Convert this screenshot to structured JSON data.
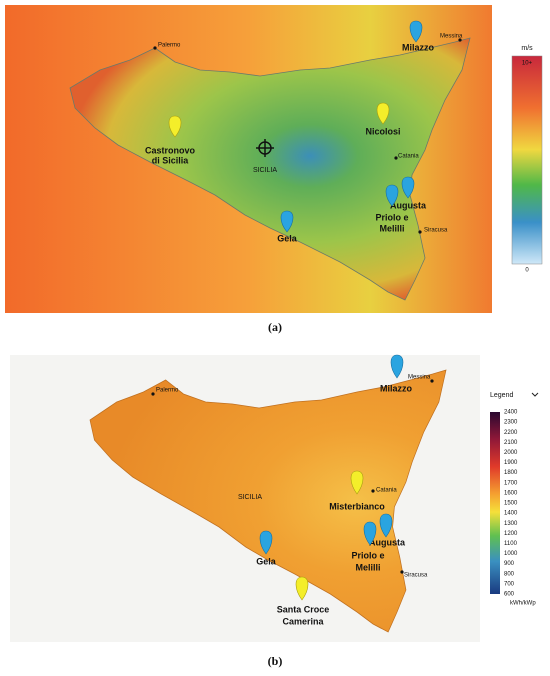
{
  "panel_a": {
    "unit": "m/s",
    "scale_max": "10+",
    "scale_min": 0,
    "places": {
      "palermo": [
        "Palermo"
      ],
      "messina": [
        "Messina"
      ],
      "milazzo": [
        "Milazzo"
      ],
      "castronovo": [
        "Castronovo",
        "di Sicilia"
      ],
      "sicilia": [
        "SICILIA"
      ],
      "nicolosi": [
        "Nicolosi"
      ],
      "catania": [
        "Catania"
      ],
      "augusta": [
        "Augusta"
      ],
      "priolo": [
        "Priolo e",
        "Melilli"
      ],
      "siracusa": [
        "Siracusa"
      ],
      "gela": [
        "Gela"
      ]
    },
    "caption": "(a)"
  },
  "panel_b": {
    "legend_title": "Legend",
    "unit": "kWh/kWp",
    "legend_ticks": [
      2400,
      2300,
      2200,
      2100,
      2000,
      1900,
      1800,
      1700,
      1600,
      1500,
      1400,
      1300,
      1200,
      1100,
      1000,
      900,
      800,
      700,
      600
    ],
    "places": {
      "palermo": [
        "Palermo"
      ],
      "messina": [
        "Messina"
      ],
      "milazzo": [
        "Milazzo"
      ],
      "sicilia": [
        "SICILIA"
      ],
      "catania": [
        "Catania"
      ],
      "misterbianco": [
        "Misterbianco"
      ],
      "augusta": [
        "Augusta"
      ],
      "priolo": [
        "Priolo e",
        "Melilli"
      ],
      "siracusa": [
        "Siracusa"
      ],
      "gela": [
        "Gela"
      ],
      "santacroce": [
        "Santa Croce",
        "Camerina"
      ]
    },
    "caption": "(b)"
  }
}
